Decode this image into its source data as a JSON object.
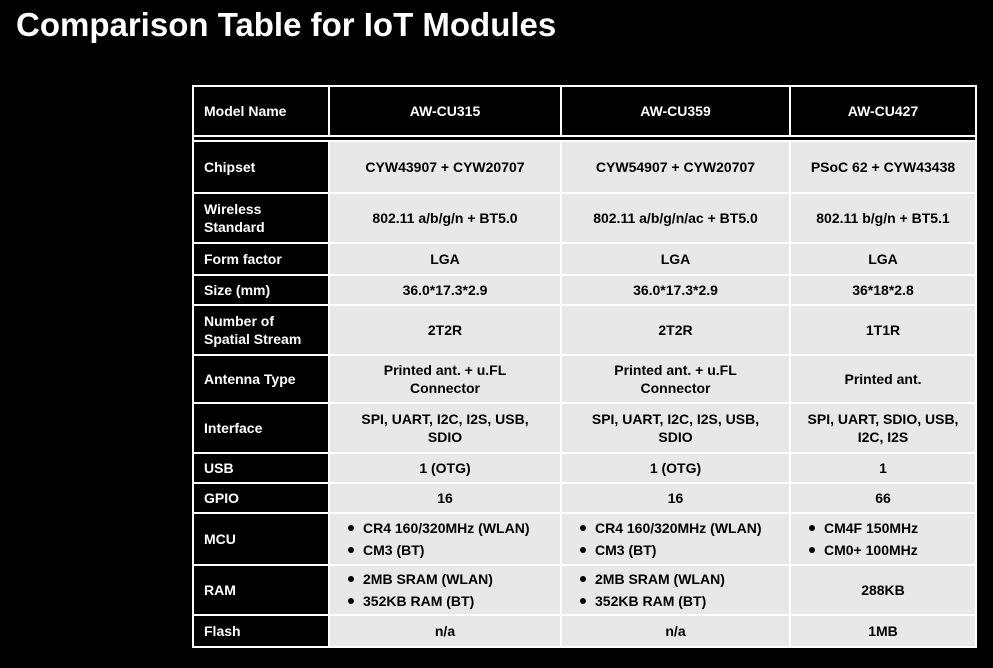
{
  "page": {
    "title": "Comparison Table for IoT Modules"
  },
  "colors": {
    "background": "#000000",
    "header_bg": "#000000",
    "header_text": "#ffffff",
    "label_bg": "#000000",
    "label_text": "#ffffff",
    "cell_bg": "#e8e8e8",
    "cell_text": "#000000",
    "grid_line": "#ffffff"
  },
  "table": {
    "header": {
      "label": "Model Name",
      "columns": [
        "AW-CU315",
        "AW-CU359",
        "AW-CU427"
      ]
    },
    "rows": [
      {
        "label": "Chipset",
        "cells": [
          {
            "text": "CYW43907 + CYW20707"
          },
          {
            "text": "CYW54907 + CYW20707"
          },
          {
            "text": "PSoC 62 + CYW43438"
          }
        ]
      },
      {
        "label": "Wireless\nStandard",
        "cells": [
          {
            "text": "802.11 a/b/g/n + BT5.0"
          },
          {
            "text": "802.11 a/b/g/n/ac + BT5.0"
          },
          {
            "text": "802.11 b/g/n + BT5.1"
          }
        ]
      },
      {
        "label": "Form factor",
        "cells": [
          {
            "text": "LGA"
          },
          {
            "text": "LGA"
          },
          {
            "text": "LGA"
          }
        ]
      },
      {
        "label": "Size (mm)",
        "cells": [
          {
            "text": "36.0*17.3*2.9"
          },
          {
            "text": "36.0*17.3*2.9"
          },
          {
            "text": "36*18*2.8"
          }
        ]
      },
      {
        "label": "Number of\nSpatial Stream",
        "cells": [
          {
            "text": "2T2R"
          },
          {
            "text": "2T2R"
          },
          {
            "text": "1T1R"
          }
        ]
      },
      {
        "label": "Antenna Type",
        "cells": [
          {
            "text": "Printed ant. + u.FL\nConnector"
          },
          {
            "text": "Printed ant. + u.FL\nConnector"
          },
          {
            "text": "Printed ant."
          }
        ]
      },
      {
        "label": "Interface",
        "cells": [
          {
            "text": "SPI, UART, I2C, I2S, USB,\nSDIO"
          },
          {
            "text": "SPI, UART, I2C, I2S, USB,\nSDIO"
          },
          {
            "text": "SPI, UART, SDIO, USB,\nI2C, I2S"
          }
        ]
      },
      {
        "label": "USB",
        "cells": [
          {
            "text": "1 (OTG)"
          },
          {
            "text": "1 (OTG)"
          },
          {
            "text": "1"
          }
        ]
      },
      {
        "label": "GPIO",
        "cells": [
          {
            "text": "16"
          },
          {
            "text": "16"
          },
          {
            "text": "66"
          }
        ]
      },
      {
        "label": "MCU",
        "cells": [
          {
            "bullets": [
              "CR4 160/320MHz (WLAN)",
              "CM3 (BT)"
            ]
          },
          {
            "bullets": [
              "CR4 160/320MHz (WLAN)",
              "CM3 (BT)"
            ]
          },
          {
            "bullets": [
              "CM4F 150MHz",
              "CM0+ 100MHz"
            ]
          }
        ]
      },
      {
        "label": "RAM",
        "cells": [
          {
            "bullets": [
              "2MB SRAM (WLAN)",
              "352KB RAM (BT)"
            ]
          },
          {
            "bullets": [
              "2MB SRAM (WLAN)",
              "352KB RAM (BT)"
            ]
          },
          {
            "text": "288KB"
          }
        ]
      },
      {
        "label": "Flash",
        "cells": [
          {
            "text": "n/a"
          },
          {
            "text": "n/a"
          },
          {
            "text": "1MB"
          }
        ]
      }
    ]
  }
}
